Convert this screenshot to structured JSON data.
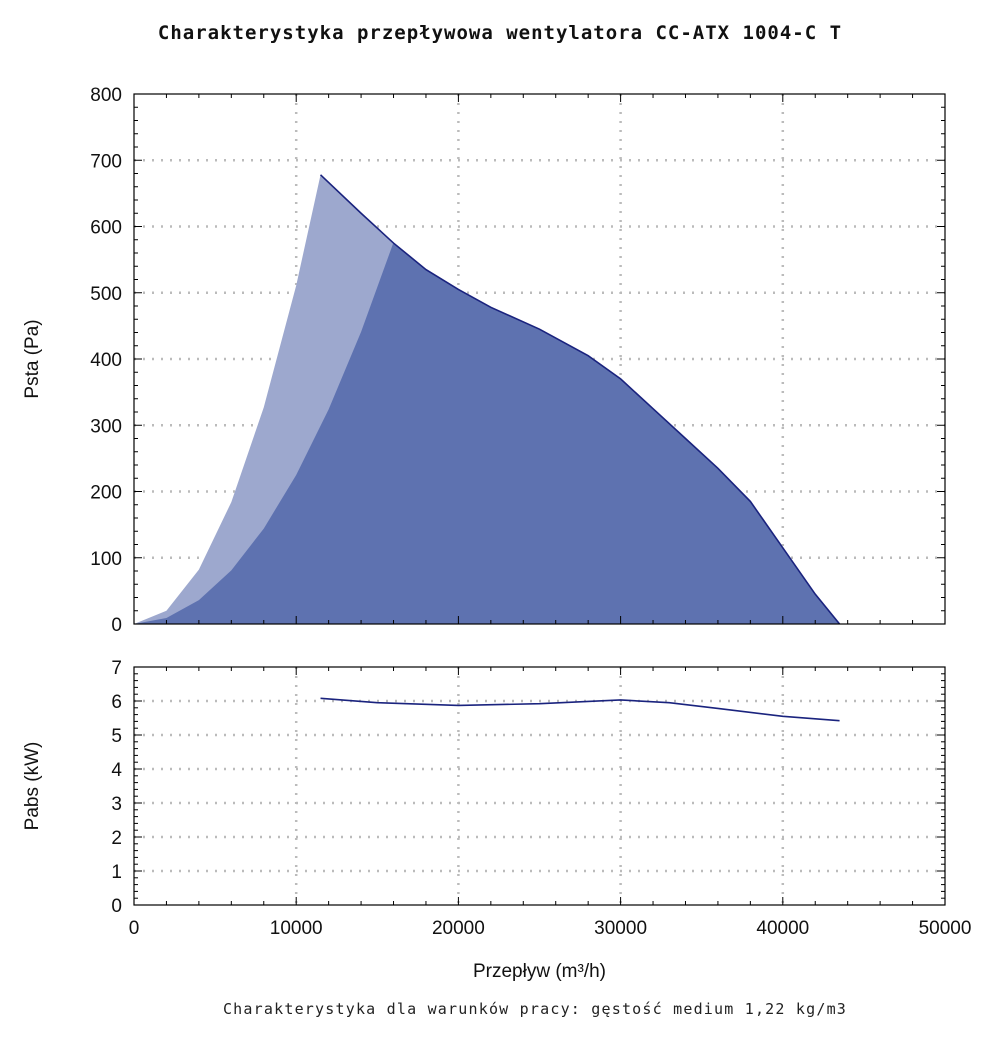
{
  "title": "Charakterystyka przepływowa wentylatora CC-ATX 1004-C T",
  "footer": "Charakterystyka dla warunków pracy: gęstość medium 1,22 kg/m3",
  "colors": {
    "line": "#1a237e",
    "fill_dark": "#5e72b0",
    "fill_light": "#9da8ce",
    "grid": "#bbbbbb"
  },
  "chart_data": [
    {
      "type": "area",
      "xlabel": "",
      "ylabel": "Psta (Pa)",
      "xlim": [
        0,
        50000
      ],
      "ylim": [
        0,
        800
      ],
      "xticks": [
        0,
        10000,
        20000,
        30000,
        40000,
        50000
      ],
      "yticks": [
        0,
        100,
        200,
        300,
        400,
        500,
        600,
        700,
        800
      ],
      "grid": true,
      "series": [
        {
          "role": "fan-curve",
          "x": [
            11500,
            14000,
            16000,
            18000,
            20000,
            22000,
            25000,
            28000,
            30000,
            32000,
            34000,
            36000,
            38000,
            40000,
            42000,
            43500
          ],
          "y": [
            678,
            620,
            575,
            535,
            505,
            478,
            445,
            405,
            370,
            325,
            280,
            235,
            185,
            115,
            45,
            0
          ]
        },
        {
          "role": "system-curve-high",
          "x": [
            0,
            2000,
            4000,
            6000,
            8000,
            10000,
            11500
          ],
          "y": [
            0,
            20,
            82,
            184,
            327,
            511,
            678
          ]
        },
        {
          "role": "system-curve-low",
          "x": [
            0,
            2000,
            4000,
            6000,
            8000,
            10000,
            12000,
            14000,
            16000
          ],
          "y": [
            0,
            9,
            36,
            81,
            144,
            225,
            324,
            441,
            576
          ]
        }
      ]
    },
    {
      "type": "line",
      "xlabel": "Przepływ (m³/h)",
      "ylabel": "Pabs (kW)",
      "xlim": [
        0,
        50000
      ],
      "ylim": [
        0,
        7
      ],
      "xticks": [
        0,
        10000,
        20000,
        30000,
        40000,
        50000
      ],
      "yticks": [
        0,
        1,
        2,
        3,
        4,
        5,
        6,
        7
      ],
      "grid": true,
      "series": [
        {
          "x": [
            11500,
            15000,
            20000,
            25000,
            30000,
            33000,
            36000,
            40000,
            43500
          ],
          "y": [
            6.08,
            5.95,
            5.87,
            5.92,
            6.03,
            5.95,
            5.78,
            5.55,
            5.42
          ]
        }
      ]
    }
  ]
}
